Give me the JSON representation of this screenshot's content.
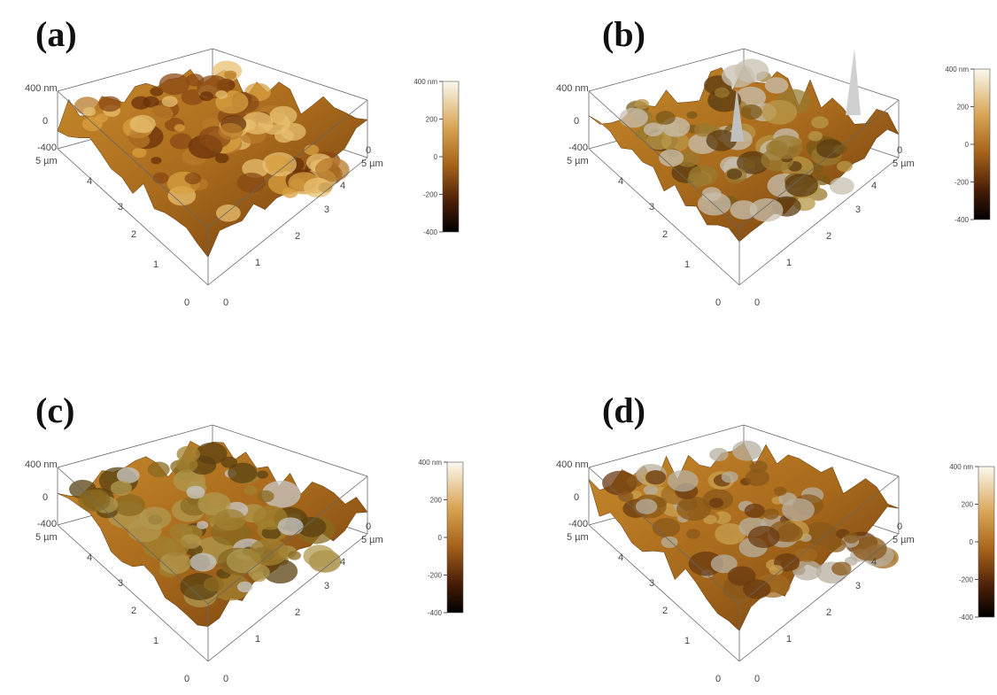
{
  "panels": [
    {
      "label": "(a)",
      "z_axis": [
        "400 nm",
        "0",
        "-400"
      ],
      "z_axis_right": "0",
      "left_axis": [
        "5 µm",
        "4",
        "3",
        "2",
        "1",
        "0"
      ],
      "right_axis": [
        "0",
        "1",
        "2",
        "3",
        "4",
        "5 µm"
      ],
      "colorbar": [
        "400 nm",
        "200",
        "0",
        "-200",
        "-400"
      ]
    },
    {
      "label": "(b)",
      "z_axis": [
        "400 nm",
        "0",
        "-400"
      ],
      "z_axis_right": "0",
      "left_axis": [
        "5 µm",
        "4",
        "3",
        "2",
        "1",
        "0"
      ],
      "right_axis": [
        "0",
        "1",
        "2",
        "3",
        "4",
        "5 µm"
      ],
      "colorbar": [
        "400 nm",
        "200",
        "0",
        "-200",
        "-400"
      ]
    },
    {
      "label": "(c)",
      "z_axis": [
        "400 nm",
        "0",
        "-400"
      ],
      "z_axis_right": "0",
      "left_axis": [
        "5 µm",
        "4",
        "3",
        "2",
        "1",
        "0"
      ],
      "right_axis": [
        "0",
        "1",
        "2",
        "3",
        "4",
        "5 µm"
      ],
      "colorbar": [
        "400 nm",
        "200",
        "0",
        "-200",
        "-400"
      ]
    },
    {
      "label": "(d)",
      "z_axis": [
        "400 nm",
        "0",
        "-400"
      ],
      "z_axis_right": "0",
      "left_axis": [
        "5 µm",
        "4",
        "3",
        "2",
        "1",
        "0"
      ],
      "right_axis": [
        "0",
        "1",
        "2",
        "3",
        "4",
        "5 µm"
      ],
      "colorbar": [
        "400 nm",
        "200",
        "0",
        "-200",
        "-400"
      ]
    }
  ]
}
